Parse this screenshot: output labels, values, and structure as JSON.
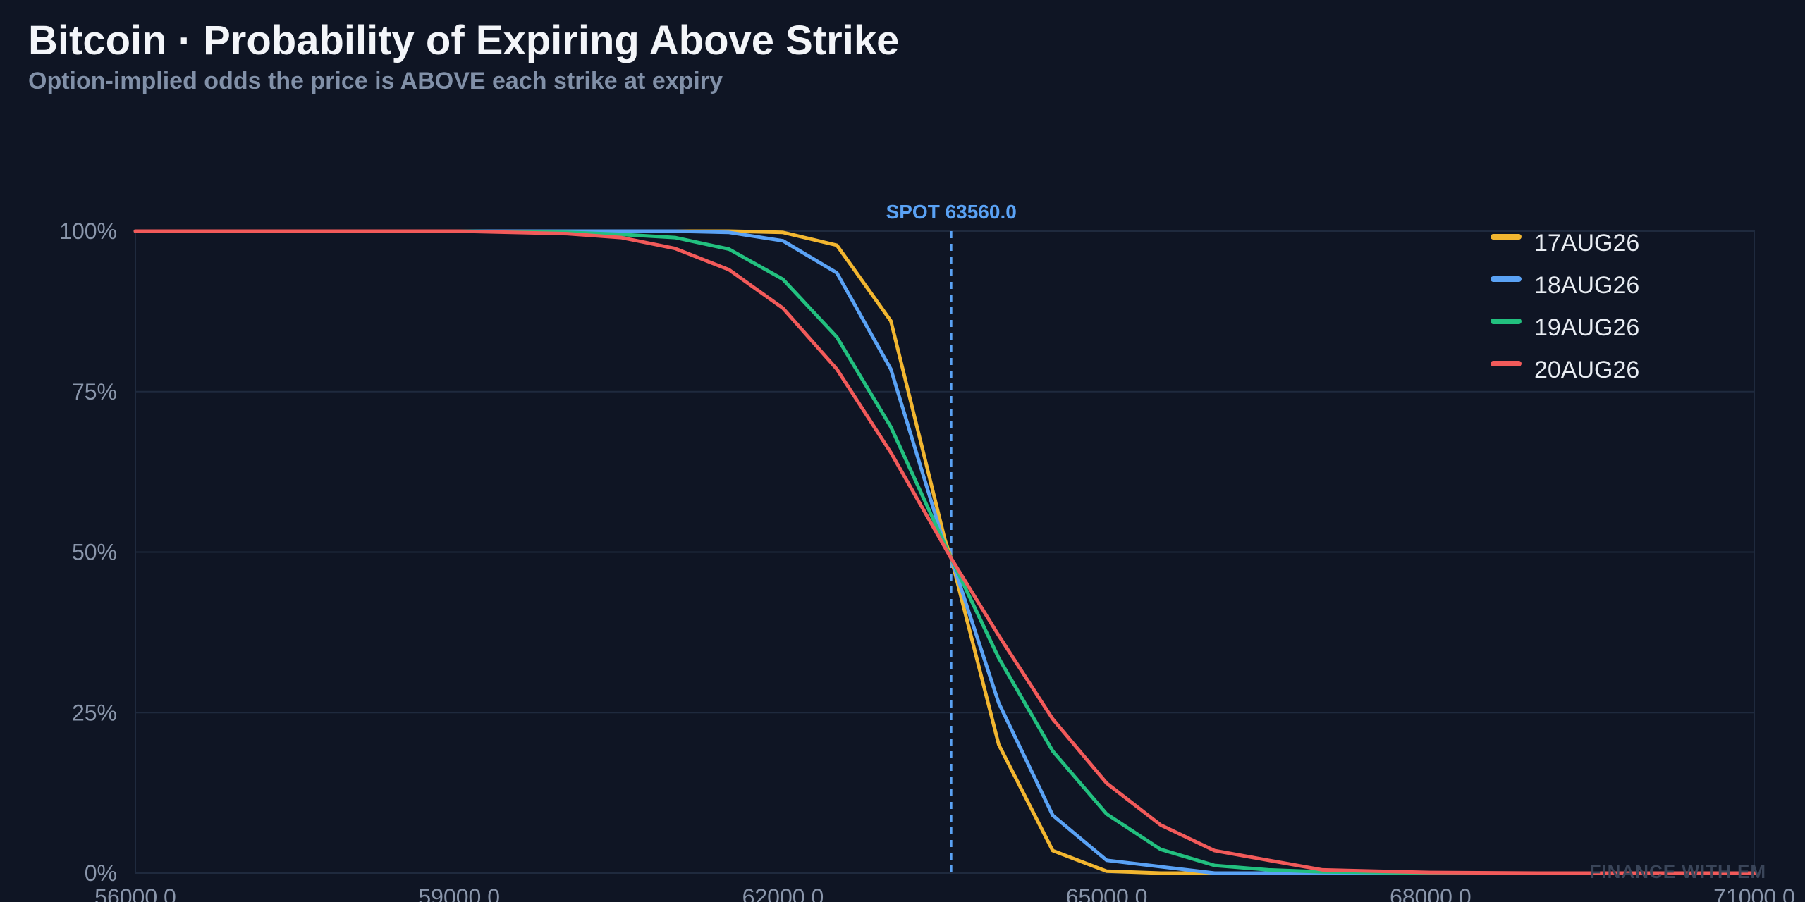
{
  "title": "Bitcoin · Probability of Expiring Above Strike",
  "subtitle": "Option-implied odds the price is ABOVE each strike at expiry",
  "watermark": "FINANCE WITH EM",
  "colors": {
    "background": "#0f1524",
    "grid": "#1f2a3e",
    "spot": "#5aa2f5"
  },
  "chart_data": {
    "type": "line",
    "title": "Bitcoin · Probability of Expiring Above Strike",
    "subtitle": "Option-implied odds the price is ABOVE each strike at expiry",
    "xlabel": "",
    "ylabel": "",
    "xlim": [
      56000,
      71000
    ],
    "ylim": [
      0,
      1
    ],
    "x_ticks": [
      56000,
      59000,
      62000,
      65000,
      68000,
      71000
    ],
    "x_tick_labels": [
      "56000.0",
      "59000.0",
      "62000.0",
      "65000.0",
      "68000.0",
      "71000.0"
    ],
    "y_ticks": [
      0,
      0.25,
      0.5,
      0.75,
      1.0
    ],
    "y_tick_labels": [
      "0%",
      "25%",
      "50%",
      "75%",
      "100%"
    ],
    "grid": true,
    "legend_position": "top-right",
    "spot": {
      "label": "SPOT 63560.0",
      "value": 63560
    },
    "series": [
      {
        "name": "17AUG26",
        "color": "#f2b630",
        "x": [
          56000,
          57000,
          58000,
          59000,
          60000,
          61000,
          61500,
          62000,
          62500,
          63000,
          63500,
          63560,
          64000,
          64500,
          65000,
          65500,
          66000,
          66500,
          67000,
          68000,
          69000,
          70000,
          71000
        ],
        "y": [
          1.0,
          1.0,
          1.0,
          1.0,
          1.0,
          1.0,
          1.0,
          0.998,
          0.978,
          0.86,
          0.52,
          0.49,
          0.2,
          0.035,
          0.003,
          0.0,
          0.0,
          0.0,
          0.0,
          0.0,
          0.0,
          0.0,
          0.0
        ]
      },
      {
        "name": "18AUG26",
        "color": "#5aa2f5",
        "x": [
          56000,
          57000,
          58000,
          59000,
          60000,
          61000,
          61500,
          62000,
          62500,
          63000,
          63500,
          63560,
          64000,
          64500,
          65000,
          65500,
          66000,
          66500,
          67000,
          68000,
          69000,
          70000,
          71000
        ],
        "y": [
          1.0,
          1.0,
          1.0,
          1.0,
          1.0,
          1.0,
          0.998,
          0.985,
          0.935,
          0.785,
          0.51,
          0.49,
          0.265,
          0.09,
          0.02,
          0.01,
          0.0,
          0.0,
          0.0,
          0.0,
          0.0,
          0.0,
          0.0
        ]
      },
      {
        "name": "19AUG26",
        "color": "#22c07f",
        "x": [
          56000,
          57000,
          58000,
          59000,
          60000,
          60500,
          61000,
          61500,
          62000,
          62500,
          63000,
          63560,
          64000,
          64500,
          65000,
          65500,
          66000,
          66500,
          67000,
          68000,
          69000,
          70000,
          71000
        ],
        "y": [
          1.0,
          1.0,
          1.0,
          1.0,
          0.998,
          0.995,
          0.99,
          0.972,
          0.925,
          0.835,
          0.695,
          0.49,
          0.335,
          0.19,
          0.092,
          0.037,
          0.012,
          0.005,
          0.002,
          0.0,
          0.0,
          0.0,
          0.0
        ]
      },
      {
        "name": "20AUG26",
        "color": "#f25a5a",
        "x": [
          56000,
          57000,
          58000,
          59000,
          60000,
          60500,
          61000,
          61500,
          62000,
          62500,
          63000,
          63560,
          64000,
          64500,
          65000,
          65500,
          66000,
          66500,
          67000,
          68000,
          69000,
          70000,
          71000
        ],
        "y": [
          1.0,
          1.0,
          1.0,
          1.0,
          0.996,
          0.99,
          0.973,
          0.94,
          0.88,
          0.785,
          0.655,
          0.49,
          0.37,
          0.24,
          0.14,
          0.075,
          0.035,
          0.02,
          0.005,
          0.001,
          0.0,
          0.0,
          0.0
        ]
      }
    ]
  }
}
